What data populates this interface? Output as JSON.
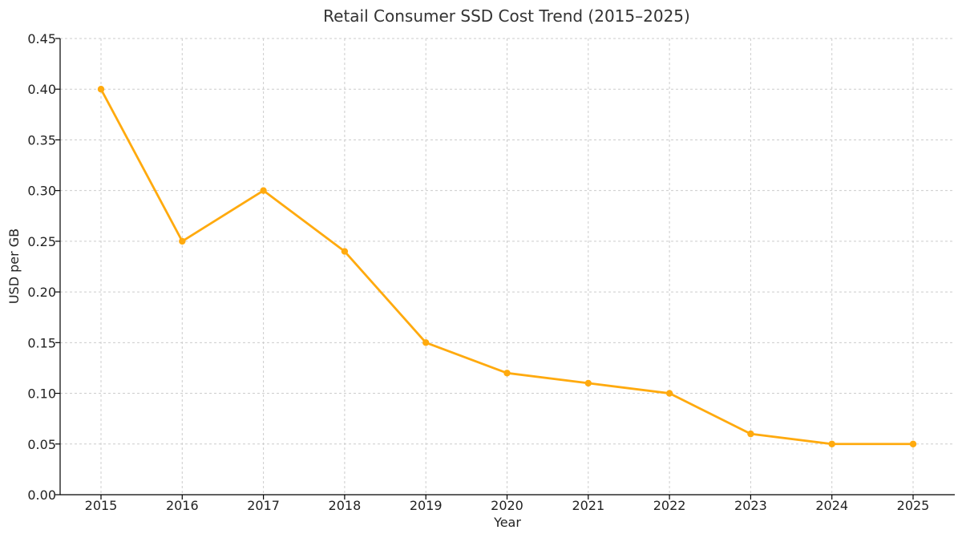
{
  "chart_data": {
    "type": "line",
    "title": "Retail Consumer SSD Cost Trend (2015–2025)",
    "xlabel": "Year",
    "ylabel": "USD per GB",
    "x": [
      "2015",
      "2016",
      "2017",
      "2018",
      "2019",
      "2020",
      "2021",
      "2022",
      "2023",
      "2024",
      "2025"
    ],
    "series": [
      {
        "name": "USD per GB",
        "values": [
          0.4,
          0.25,
          0.3,
          0.24,
          0.15,
          0.12,
          0.11,
          0.1,
          0.06,
          0.05,
          0.05
        ],
        "color": "#FFAA0E"
      }
    ],
    "ylim": [
      0,
      0.45
    ],
    "yticks": [
      "0.00",
      "0.05",
      "0.10",
      "0.15",
      "0.20",
      "0.25",
      "0.30",
      "0.35",
      "0.40",
      "0.45"
    ],
    "grid": true,
    "legend": "none"
  }
}
